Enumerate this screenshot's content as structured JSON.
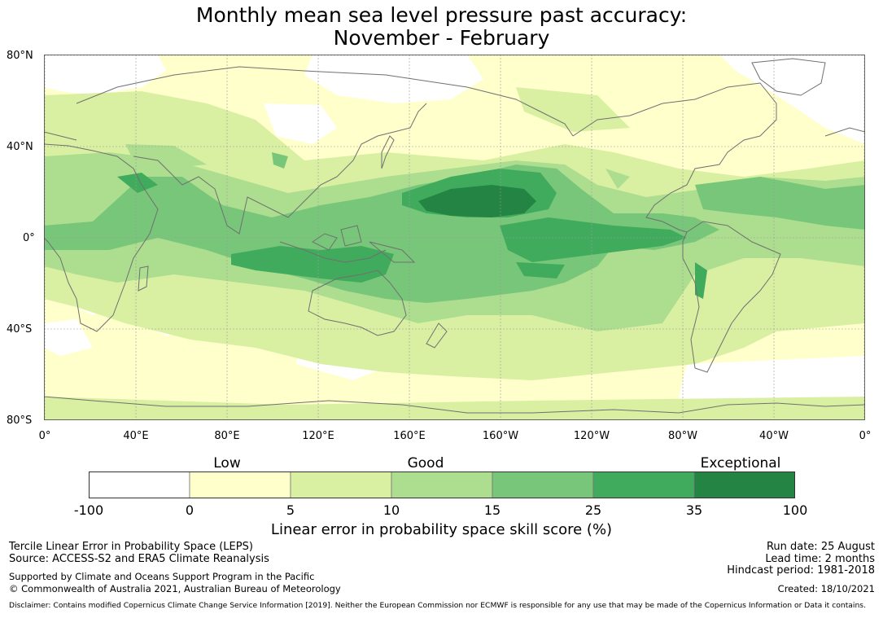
{
  "title": {
    "line1": "Monthly mean sea level pressure past accuracy:",
    "line2": "November - February"
  },
  "map": {
    "lat_labels": [
      "80°N",
      "40°N",
      "0°",
      "40°S",
      "80°S"
    ],
    "lon_labels": [
      "0°",
      "40°E",
      "80°E",
      "120°E",
      "160°E",
      "160°W",
      "120°W",
      "80°W",
      "40°W",
      "0°"
    ],
    "grid": true,
    "projection": "equirectangular, centred on 180°"
  },
  "legend": {
    "categories": [
      "Low",
      "Good",
      "Exceptional"
    ],
    "ticks": [
      "-100",
      "0",
      "5",
      "10",
      "15",
      "25",
      "35",
      "100"
    ],
    "colors": [
      "#ffffff",
      "#ffffcc",
      "#d9f0a3",
      "#addd8e",
      "#78c679",
      "#41ab5d",
      "#238443"
    ],
    "label": "Linear error in probability space skill score (%)"
  },
  "footer": {
    "left1": "Tercile Linear Error in Probability Space (LEPS)",
    "left2": "Source: ACCESS-S2 and ERA5 Climate Reanalysis",
    "left3": "Supported by Climate and Oceans Support Program in the Pacific",
    "left4": "© Commonwealth of Australia 2021, Australian Bureau of Meteorology",
    "right1": "Run date: 25 August",
    "right2": "Lead time: 2 months",
    "right3": "Hindcast period: 1981-2018",
    "right4": "Created: 18/10/2021",
    "disclaimer": "Disclaimer: Contains modified Copernicus Climate Change Service Information [2019]. Neither the European Commission nor ECMWF is responsible for any use that may be made of the Copernicus Information or Data it contains."
  }
}
